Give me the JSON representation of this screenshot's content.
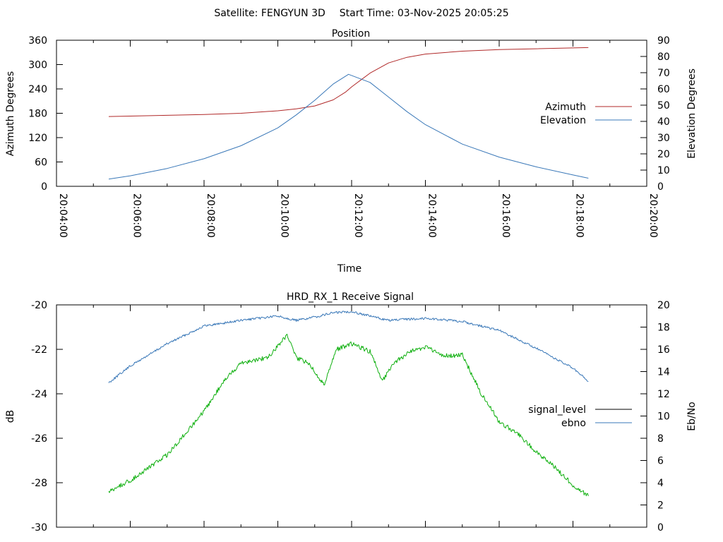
{
  "header": {
    "satellite_label": "Satellite: FENGYUN 3D",
    "start_time_label": "Start Time: 03-Nov-2025 20:05:25"
  },
  "chart_data": [
    {
      "type": "line",
      "title": "Position",
      "xlabel": "Time",
      "ylabel": "Azimuth Degrees",
      "y2label": "Elevation Degrees",
      "xlim": [
        "20:04:00",
        "20:20:00"
      ],
      "xticks": [
        "20:04:00",
        "20:06:00",
        "20:08:00",
        "20:10:00",
        "20:12:00",
        "20:14:00",
        "20:16:00",
        "20:18:00",
        "20:20:00"
      ],
      "ylim": [
        0,
        360
      ],
      "yticks": [
        0,
        60,
        120,
        180,
        240,
        300,
        360
      ],
      "y2lim": [
        0,
        90
      ],
      "y2ticks": [
        0,
        10,
        20,
        30,
        40,
        50,
        60,
        70,
        80,
        90
      ],
      "grid": false,
      "legend_position": "right",
      "series": [
        {
          "name": "Azimuth",
          "axis": "left",
          "color": "#b02828",
          "x": [
            "20:05:25",
            "20:06:00",
            "20:07:00",
            "20:08:00",
            "20:09:00",
            "20:10:00",
            "20:10:30",
            "20:11:00",
            "20:11:30",
            "20:11:50",
            "20:12:00",
            "20:12:15",
            "20:12:30",
            "20:13:00",
            "20:13:30",
            "20:14:00",
            "20:15:00",
            "20:16:00",
            "20:17:00",
            "20:18:00",
            "20:18:25"
          ],
          "values": [
            172,
            173,
            175,
            177,
            180,
            186,
            191,
            198,
            213,
            232,
            245,
            262,
            279,
            304,
            318,
            326,
            333,
            337,
            339,
            341,
            342
          ]
        },
        {
          "name": "Elevation",
          "axis": "right",
          "color": "#3a78b8",
          "x": [
            "20:05:25",
            "20:06:00",
            "20:07:00",
            "20:08:00",
            "20:09:00",
            "20:10:00",
            "20:10:30",
            "20:11:00",
            "20:11:30",
            "20:11:55",
            "20:12:30",
            "20:13:00",
            "20:13:30",
            "20:14:00",
            "20:15:00",
            "20:16:00",
            "20:17:00",
            "20:18:00",
            "20:18:25"
          ],
          "values": [
            4.5,
            6.5,
            11,
            17,
            25,
            36,
            44,
            53,
            63,
            69,
            64,
            55,
            46,
            38,
            26,
            18,
            12,
            7,
            5
          ]
        }
      ]
    },
    {
      "type": "line",
      "title": "HRD_RX_1 Receive Signal",
      "ylabel": "dB",
      "y2label": "Eb/No",
      "ylim": [
        -30,
        -20
      ],
      "yticks": [
        -30,
        -28,
        -26,
        -24,
        -22,
        -20
      ],
      "y2lim": [
        0,
        20
      ],
      "y2ticks": [
        0,
        2,
        4,
        6,
        8,
        10,
        12,
        14,
        16,
        18,
        20
      ],
      "grid": false,
      "legend_position": "right",
      "series": [
        {
          "name": "signal_level",
          "axis": "left",
          "color": "#000000",
          "x": [],
          "values": []
        },
        {
          "name": "ebno",
          "axis": "right",
          "color": "#3a78b8",
          "x": [
            "20:05:25",
            "20:06:00",
            "20:07:00",
            "20:08:00",
            "20:09:00",
            "20:10:00",
            "20:10:30",
            "20:11:00",
            "20:11:30",
            "20:12:00",
            "20:12:30",
            "20:13:00",
            "20:14:00",
            "20:15:00",
            "20:16:00",
            "20:17:00",
            "20:18:00",
            "20:18:25"
          ],
          "values": [
            13.0,
            14.5,
            16.5,
            18.1,
            18.6,
            19.0,
            18.6,
            18.9,
            19.3,
            19.4,
            19.0,
            18.6,
            18.8,
            18.5,
            17.7,
            16.1,
            14.3,
            13.1
          ]
        },
        {
          "name": "",
          "axis": "right",
          "color": "#10b010",
          "x": [
            "20:05:25",
            "20:06:00",
            "20:07:00",
            "20:08:00",
            "20:08:30",
            "20:09:00",
            "20:09:20",
            "20:09:45",
            "20:10:15",
            "20:10:30",
            "20:10:50",
            "20:11:15",
            "20:11:35",
            "20:12:00",
            "20:12:30",
            "20:12:50",
            "20:13:10",
            "20:13:35",
            "20:14:00",
            "20:14:30",
            "20:15:00",
            "20:15:30",
            "20:16:00",
            "20:16:30",
            "20:17:00",
            "20:17:30",
            "20:18:00",
            "20:18:25"
          ],
          "values": [
            3.2,
            4.2,
            6.5,
            10.4,
            13.0,
            14.8,
            15.0,
            15.3,
            17.3,
            15.2,
            14.8,
            12.8,
            16.0,
            16.5,
            15.8,
            13.2,
            14.8,
            15.8,
            16.2,
            15.4,
            15.5,
            12.1,
            9.5,
            8.4,
            6.8,
            5.4,
            3.8,
            2.8
          ]
        }
      ]
    }
  ]
}
